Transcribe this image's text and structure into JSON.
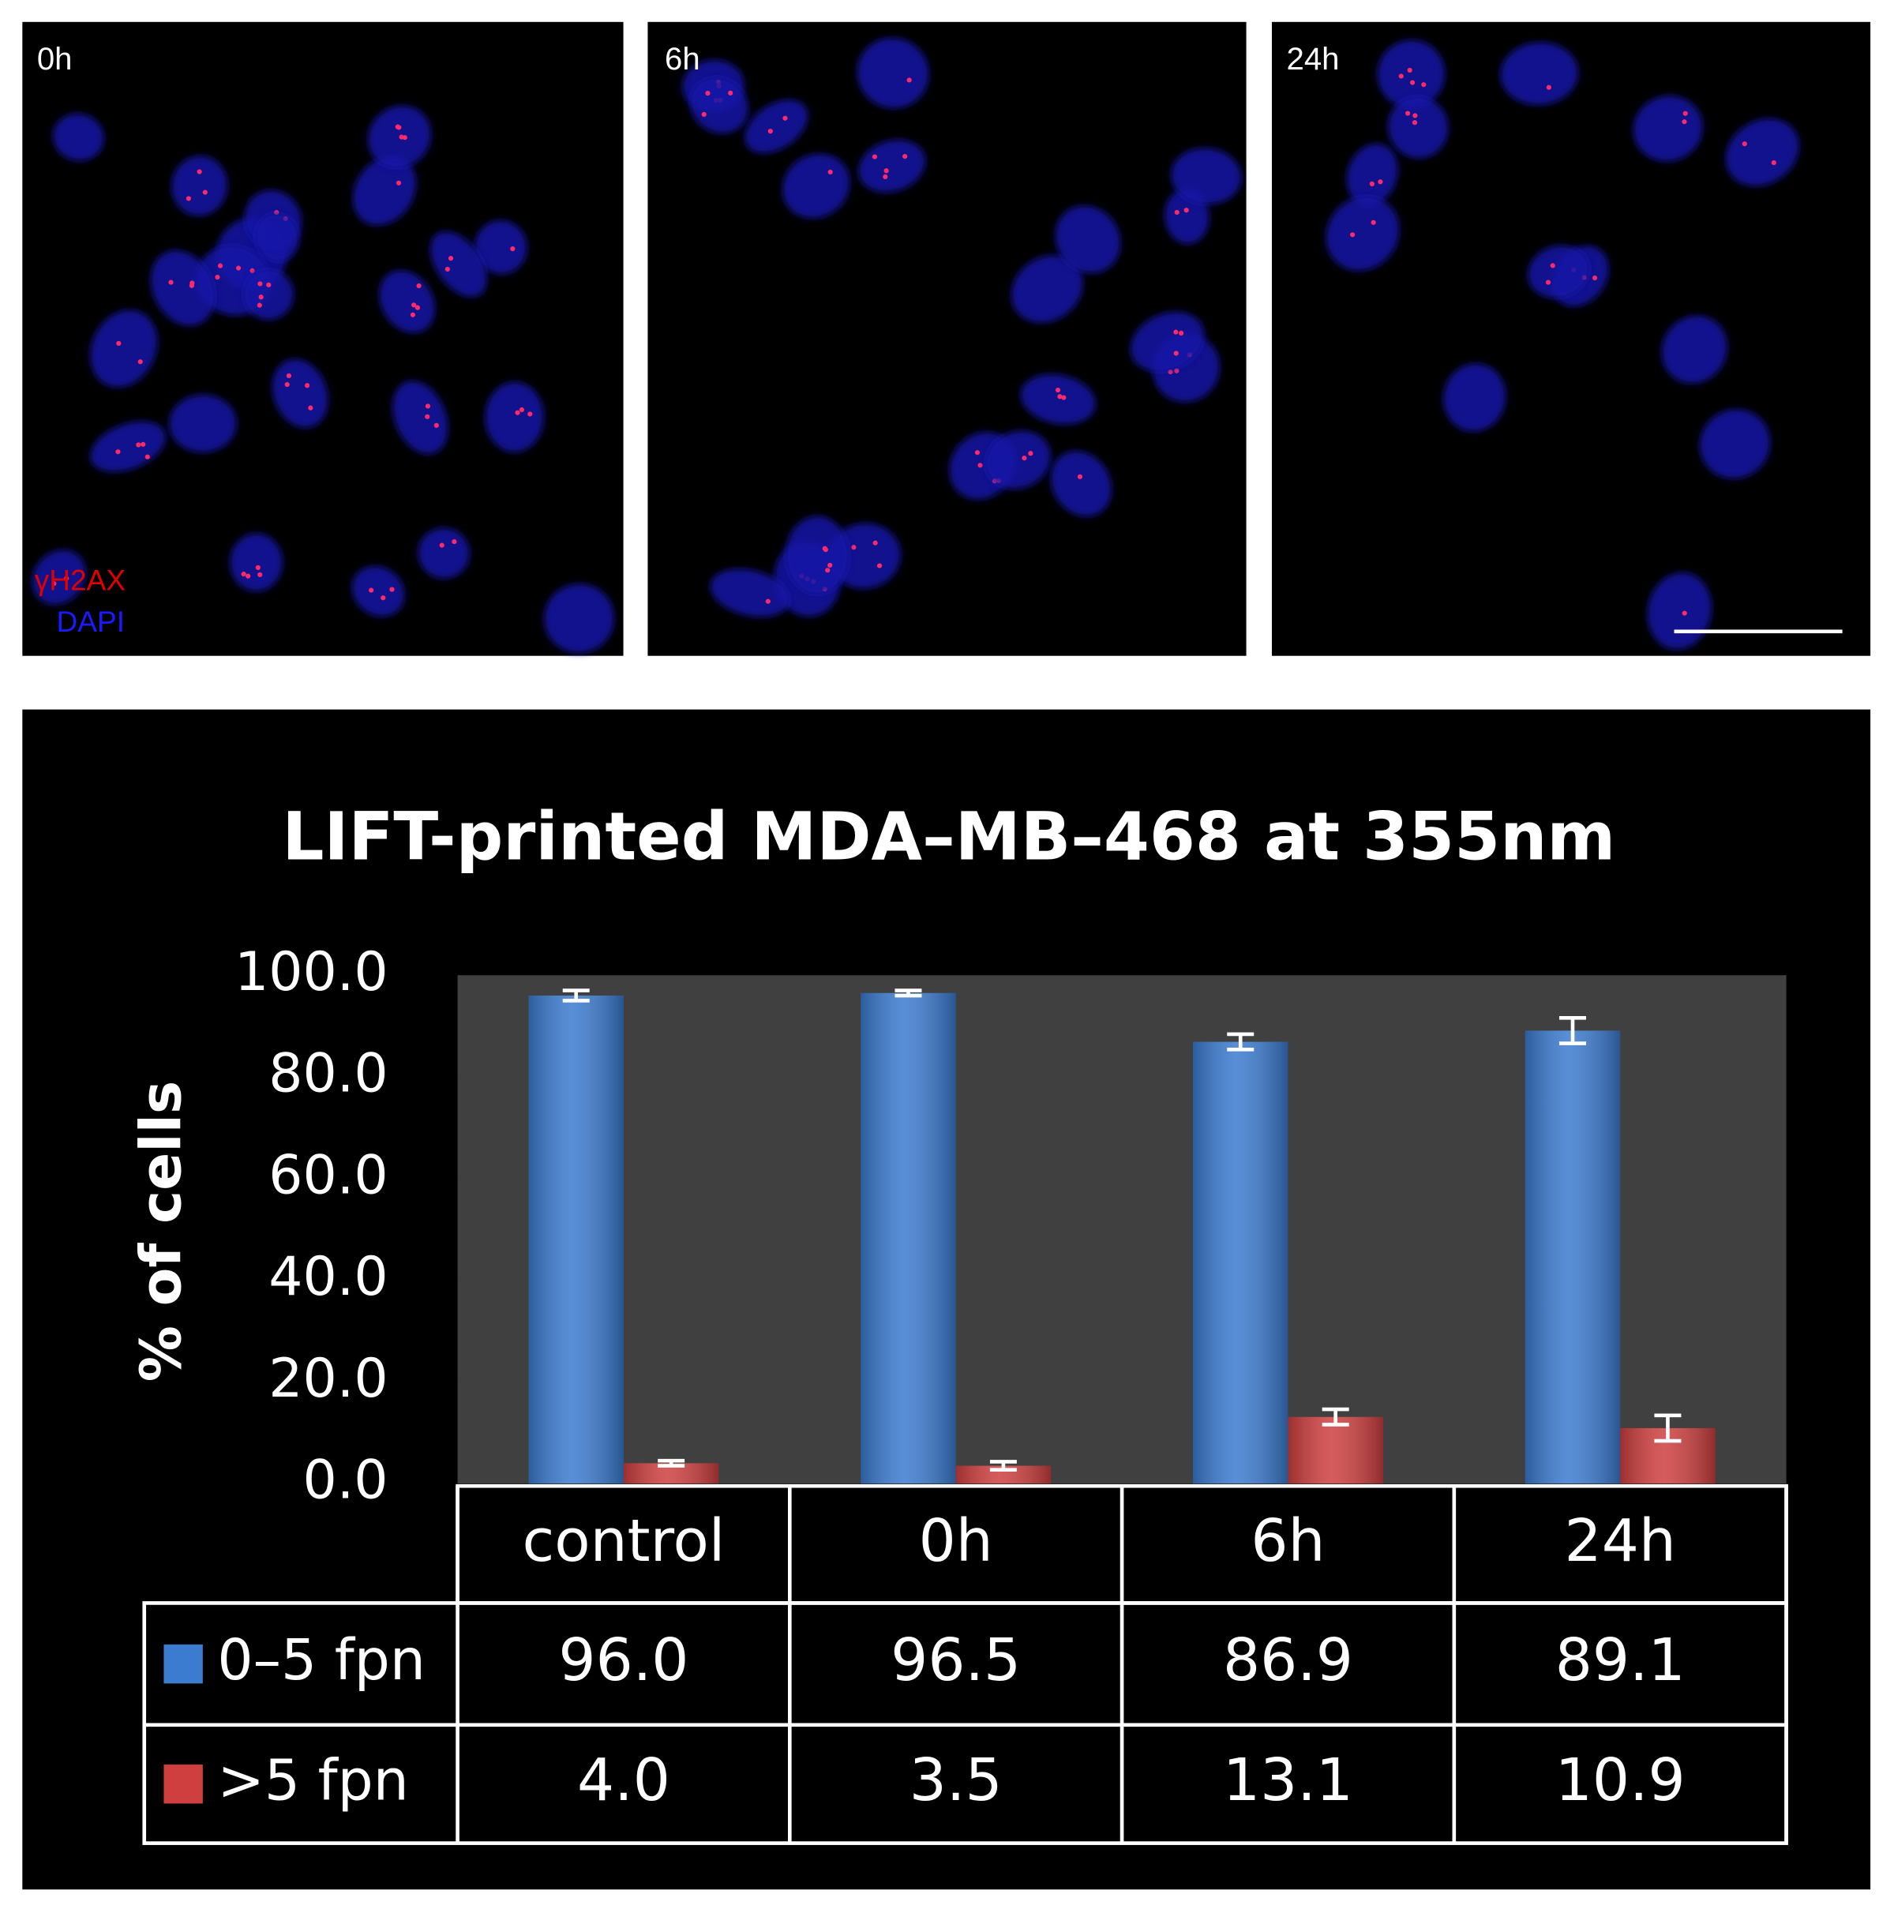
{
  "panels": [
    {
      "label": "0h"
    },
    {
      "label": "6h"
    },
    {
      "label": "24h"
    }
  ],
  "stain_labels": [
    "γH2AX",
    "DAPI"
  ],
  "chart_data": {
    "type": "bar",
    "title": "LIFT-printed MDA–MB–468 at 355nm",
    "y_label": "% of cells",
    "categories": [
      "control",
      "0h",
      "6h",
      "24h"
    ],
    "series": [
      {
        "name": "0–5 fpn",
        "color": "#3b7bd0",
        "values": [
          96.0,
          96.5,
          86.9,
          89.1
        ],
        "value_labels": [
          "96.0",
          "96.5",
          "86.9",
          "89.1"
        ],
        "errors": [
          1.0,
          0.5,
          1.5,
          2.5
        ]
      },
      {
        "name": ">5 fpn",
        "color": "#cf3f3f",
        "values": [
          4.0,
          3.5,
          13.1,
          10.9
        ],
        "value_labels": [
          "4.0",
          "3.5",
          "13.1",
          "10.9"
        ],
        "errors": [
          0.5,
          0.8,
          1.5,
          2.5
        ]
      }
    ],
    "ylim": [
      0,
      100
    ],
    "yticks": [
      {
        "value": 0,
        "label": "0.0"
      },
      {
        "value": 20,
        "label": "20.0"
      },
      {
        "value": 40,
        "label": "40.0"
      },
      {
        "value": 60,
        "label": "60.0"
      },
      {
        "value": 80,
        "label": "80.0"
      },
      {
        "value": 100,
        "label": "100.0"
      }
    ],
    "grid": false
  }
}
